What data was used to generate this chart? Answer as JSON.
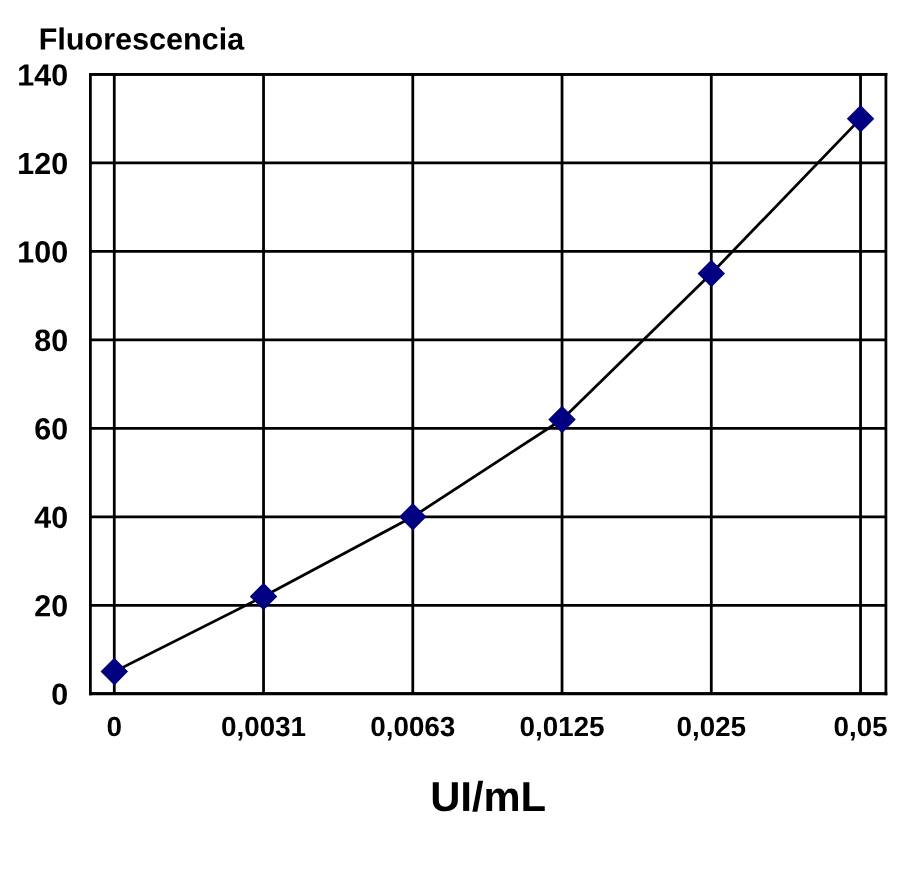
{
  "chart_data": {
    "type": "line",
    "ylabel": "Fluorescencia",
    "xlabel": "UI/mL",
    "categories": [
      "0",
      "0,0031",
      "0,0063",
      "0,0125",
      "0,025",
      "0,05"
    ],
    "series": [
      {
        "color": "#000080",
        "values": [
          5,
          22,
          40,
          62,
          95,
          130
        ]
      }
    ],
    "ylim": [
      0,
      140
    ],
    "yticks": [
      0,
      20,
      40,
      60,
      80,
      100,
      120,
      140
    ],
    "grid": true,
    "marker": "diamond",
    "legend": false
  }
}
